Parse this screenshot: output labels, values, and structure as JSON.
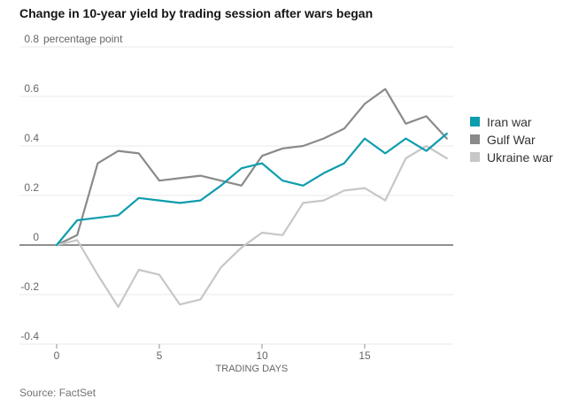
{
  "title": "Change in 10-year yield by trading session after wars began",
  "source": "Source: FactSet",
  "chart_data": {
    "type": "line",
    "title": "Change in 10-year yield by trading session after wars began",
    "unit_label": "percentage point",
    "xlabel": "TRADING DAYS",
    "ylabel": "percentage point",
    "xlim": [
      0,
      19
    ],
    "ylim": [
      -0.4,
      0.8
    ],
    "grid": true,
    "legend_position": "right",
    "x": [
      0,
      1,
      2,
      3,
      4,
      5,
      6,
      7,
      8,
      9,
      10,
      11,
      12,
      13,
      14,
      15,
      16,
      17,
      18,
      19
    ],
    "xticks": [
      "0",
      "5",
      "10",
      "15"
    ],
    "xtick_values": [
      0,
      5,
      10,
      15
    ],
    "ytick_labels": [
      "0.8",
      "0.6",
      "0.4",
      "0.2",
      "0",
      "-0.2",
      "-0.4"
    ],
    "ytick_values": [
      0.8,
      0.6,
      0.4,
      0.2,
      0,
      -0.2,
      -0.4
    ],
    "series": [
      {
        "name": "Iran war",
        "color": "#0d9dad",
        "values": [
          0,
          0.1,
          0.11,
          0.12,
          0.19,
          0.18,
          0.17,
          0.18,
          0.24,
          0.31,
          0.33,
          0.26,
          0.24,
          0.29,
          0.33,
          0.43,
          0.37,
          0.43,
          0.38,
          0.45
        ]
      },
      {
        "name": "Gulf War",
        "color": "#8a8a8a",
        "values": [
          0,
          0.04,
          0.33,
          0.38,
          0.37,
          0.26,
          0.27,
          0.28,
          0.26,
          0.24,
          0.36,
          0.39,
          0.4,
          0.43,
          0.47,
          0.57,
          0.63,
          0.49,
          0.52,
          0.43
        ]
      },
      {
        "name": "Ukraine war",
        "color": "#c7c7c7",
        "values": [
          0,
          0.02,
          -0.12,
          -0.25,
          -0.1,
          -0.12,
          -0.24,
          -0.22,
          -0.09,
          -0.01,
          0.05,
          0.04,
          0.17,
          0.18,
          0.22,
          0.23,
          0.18,
          0.35,
          0.4,
          0.35
        ]
      }
    ]
  },
  "style_colors": {
    "gridline": "#e9e9e9",
    "zero_line": "#8f8f8f",
    "tick": "#8f8f8f",
    "title_text": "#141414",
    "axis_text": "#666666",
    "legend_text": "#333333",
    "source_text": "#737373"
  }
}
